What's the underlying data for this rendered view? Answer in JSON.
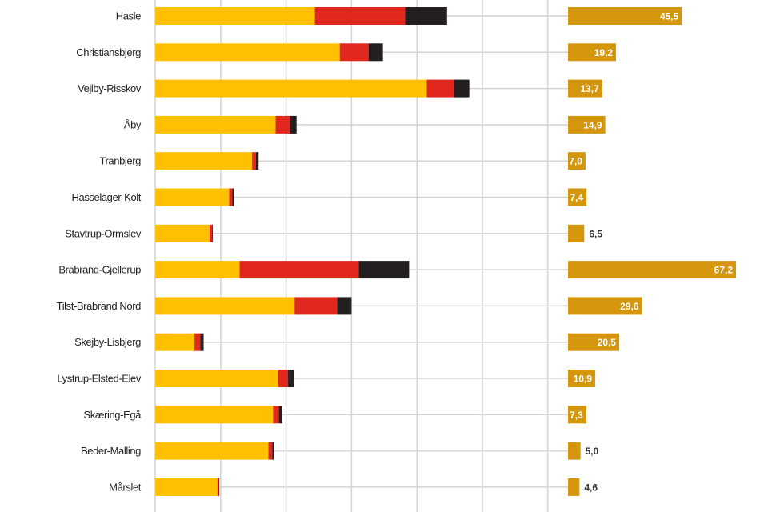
{
  "chart_data": [
    {
      "type": "bar",
      "orientation": "horizontal",
      "stacked": true,
      "categories": [
        "Hasle",
        "Christiansbjerg",
        "Vejlby-Risskov",
        "Åby",
        "Tranbjerg",
        "Hasselager-Kolt",
        "Stavtrup-Ormslev",
        "Brabrand-Gjellerup",
        "Tilst-Brabrand Nord",
        "Skejby-Lisbjerg",
        "Lystrup-Elsted-Elev",
        "Skæring-Egå",
        "Beder-Malling",
        "Mårslet"
      ],
      "series": [
        {
          "color": "#ffc000",
          "values": [
            2.44,
            2.82,
            4.15,
            1.84,
            1.48,
            1.13,
            0.83,
            1.29,
            2.13,
            0.6,
            1.88,
            1.8,
            1.73,
            0.95
          ]
        },
        {
          "color": "#e0281e",
          "values": [
            1.38,
            0.44,
            0.42,
            0.22,
            0.06,
            0.05,
            0.04,
            1.82,
            0.65,
            0.09,
            0.15,
            0.09,
            0.06,
            0.02
          ]
        },
        {
          "color": "#231f20",
          "values": [
            0.64,
            0.22,
            0.23,
            0.1,
            0.04,
            0.02,
            0.01,
            0.77,
            0.22,
            0.05,
            0.09,
            0.05,
            0.02,
            0.01
          ]
        }
      ],
      "xlim": [
        0,
        6
      ],
      "grid": true,
      "tick_labels_shown": false
    },
    {
      "type": "bar",
      "orientation": "horizontal",
      "categories": [
        "Hasle",
        "Christiansbjerg",
        "Vejlby-Risskov",
        "Åby",
        "Tranbjerg",
        "Hasselager-Kolt",
        "Stavtrup-Ormslev",
        "Brabrand-Gjellerup",
        "Tilst-Brabrand Nord",
        "Skejby-Lisbjerg",
        "Lystrup-Elsted-Elev",
        "Skæring-Egå",
        "Beder-Malling",
        "Mårslet"
      ],
      "values": [
        45.5,
        19.2,
        13.7,
        14.9,
        7.0,
        7.4,
        6.5,
        67.2,
        29.6,
        20.5,
        10.9,
        7.3,
        5.0,
        4.6
      ],
      "data_labels": [
        "45,5",
        "19,2",
        "13,7",
        "14,9",
        "7,0",
        "7,4",
        "6,5",
        "67,2",
        "29,6",
        "20,5",
        "10,9",
        "7,3",
        "5,0",
        "4,6"
      ],
      "color": "#d4960c",
      "xlim": [
        0,
        80
      ]
    }
  ]
}
